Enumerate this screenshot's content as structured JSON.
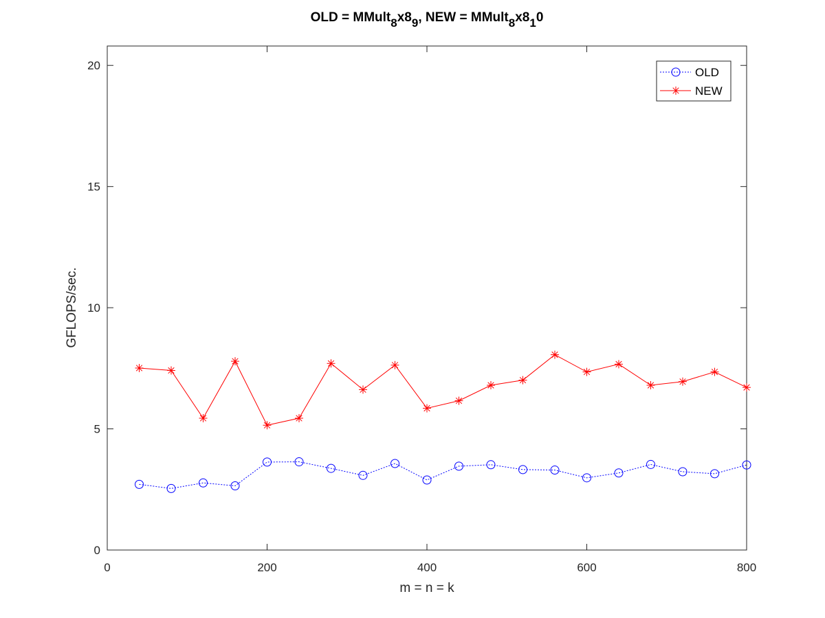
{
  "chart_data": {
    "type": "line",
    "title_parts": [
      {
        "text": "OLD = MMult",
        "sub": false
      },
      {
        "text": "8",
        "sub": true
      },
      {
        "text": "x8",
        "sub": false
      },
      {
        "text": "9",
        "sub": true
      },
      {
        "text": ", NEW = MMult",
        "sub": false
      },
      {
        "text": "8",
        "sub": true
      },
      {
        "text": "x8",
        "sub": false
      },
      {
        "text": "1",
        "sub": true
      },
      {
        "text": "0",
        "sub": false
      }
    ],
    "xlabel": "m = n = k",
    "ylabel": "GFLOPS/sec.",
    "xlim": [
      0,
      800
    ],
    "ylim": [
      0,
      20.8
    ],
    "xticks": [
      0,
      200,
      400,
      600,
      800
    ],
    "yticks": [
      0,
      5,
      10,
      15,
      20
    ],
    "grid": false,
    "legend_position": "top-right",
    "x": [
      40,
      80,
      120,
      160,
      200,
      240,
      280,
      320,
      360,
      400,
      440,
      480,
      520,
      560,
      600,
      640,
      680,
      720,
      760,
      800
    ],
    "series": [
      {
        "name": "OLD",
        "color": "#0000ff",
        "marker": "circle",
        "line_style": "dotted",
        "values": [
          2.71,
          2.54,
          2.77,
          2.65,
          3.63,
          3.64,
          3.37,
          3.08,
          3.57,
          2.89,
          3.46,
          3.52,
          3.32,
          3.3,
          2.98,
          3.18,
          3.53,
          3.23,
          3.15,
          3.51
        ]
      },
      {
        "name": "NEW",
        "color": "#ff0000",
        "marker": "star",
        "line_style": "solid",
        "values": [
          7.51,
          7.41,
          5.44,
          7.79,
          5.15,
          5.44,
          7.7,
          6.62,
          7.63,
          5.85,
          6.16,
          6.8,
          7.01,
          8.06,
          7.35,
          7.67,
          6.8,
          6.95,
          7.35,
          6.71
        ]
      }
    ]
  }
}
